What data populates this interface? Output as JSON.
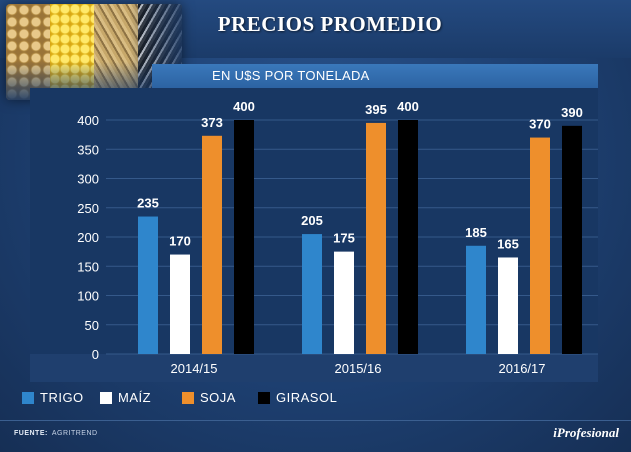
{
  "header": {
    "title": "PRECIOS PROMEDIO",
    "image_icon": "grains-photo-icon"
  },
  "chart_data": {
    "type": "bar",
    "title": "PRECIOS PROMEDIO",
    "subtitle": "EN U$S POR TONELADA",
    "categories": [
      "2014/15",
      "2015/16",
      "2016/17"
    ],
    "series": [
      {
        "name": "TRIGO",
        "color": "#2f86cc",
        "values": [
          235,
          205,
          185
        ]
      },
      {
        "name": "MAÍZ",
        "color": "#ffffff",
        "values": [
          170,
          175,
          165
        ]
      },
      {
        "name": "SOJA",
        "color": "#ee8f2c",
        "values": [
          373,
          395,
          370
        ]
      },
      {
        "name": "GIRASOL",
        "color": "#000000",
        "values": [
          400,
          400,
          390
        ]
      }
    ],
    "yticks": [
      0,
      50,
      100,
      150,
      200,
      250,
      300,
      350,
      400
    ],
    "ylim": [
      0,
      400
    ],
    "xlabel": "",
    "ylabel": "",
    "grid": true,
    "legend_position": "bottom-left"
  },
  "footer": {
    "source_label": "FUENTE:",
    "source_value": "AGRITREND",
    "brand": "iProfesional"
  }
}
